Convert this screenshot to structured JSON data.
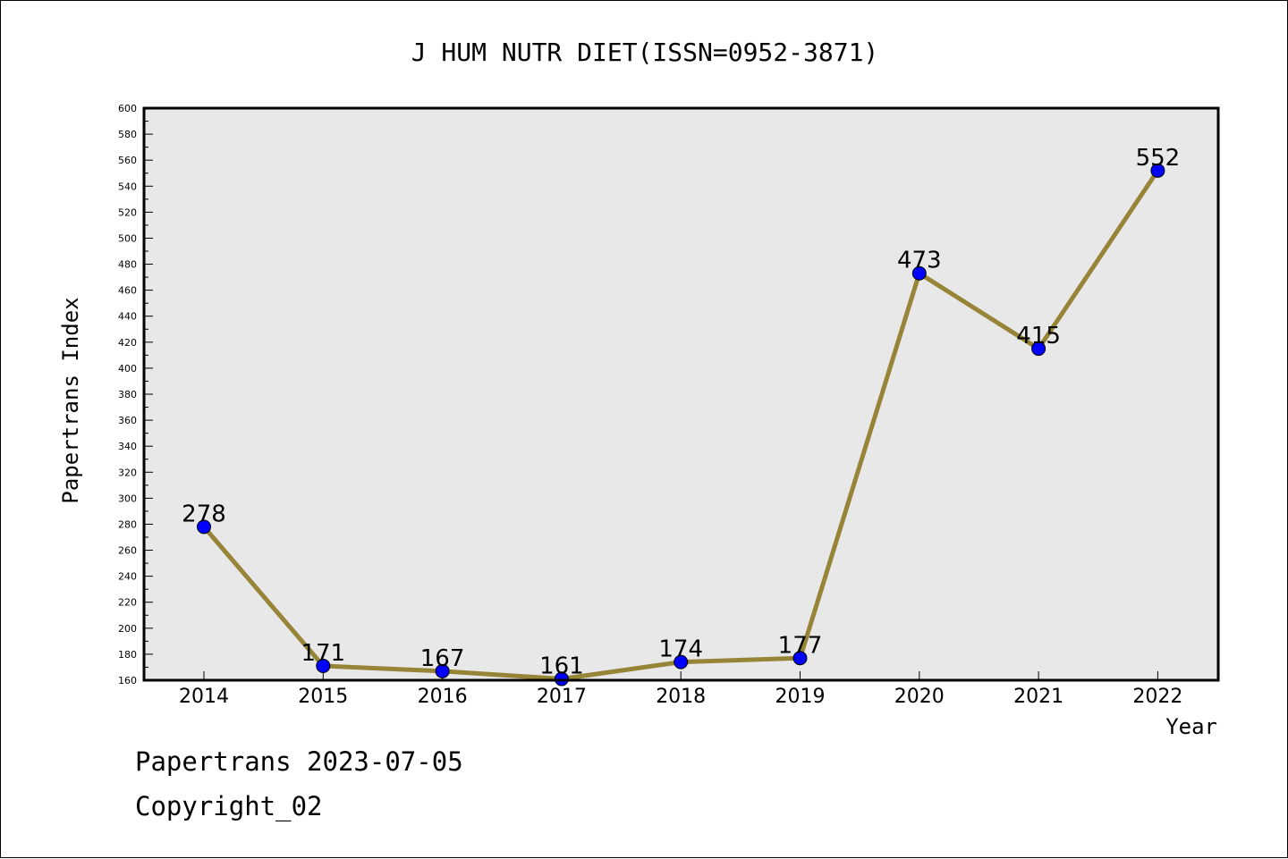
{
  "chart_data": {
    "type": "line",
    "title": "J HUM NUTR DIET(ISSN=0952-3871)",
    "xlabel": "Year",
    "ylabel": "Papertrans Index",
    "categories": [
      "2014",
      "2015",
      "2016",
      "2017",
      "2018",
      "2019",
      "2020",
      "2021",
      "2022"
    ],
    "series": [
      {
        "values": [
          278,
          171,
          167,
          161,
          174,
          177,
          473,
          415,
          552
        ]
      }
    ],
    "ylim": [
      160,
      600
    ],
    "yticks": [
      160,
      180,
      200,
      220,
      240,
      260,
      280,
      300,
      320,
      340,
      360,
      380,
      400,
      420,
      440,
      460,
      480,
      500,
      520,
      540,
      560,
      580,
      600
    ],
    "grid": false,
    "plot_background": "#e8e8e8",
    "line_color": "#978537",
    "marker_color": "#0000ff"
  },
  "footer": {
    "date_text": "Papertrans 2023-07-05",
    "copyright_text": "Copyright_02"
  }
}
